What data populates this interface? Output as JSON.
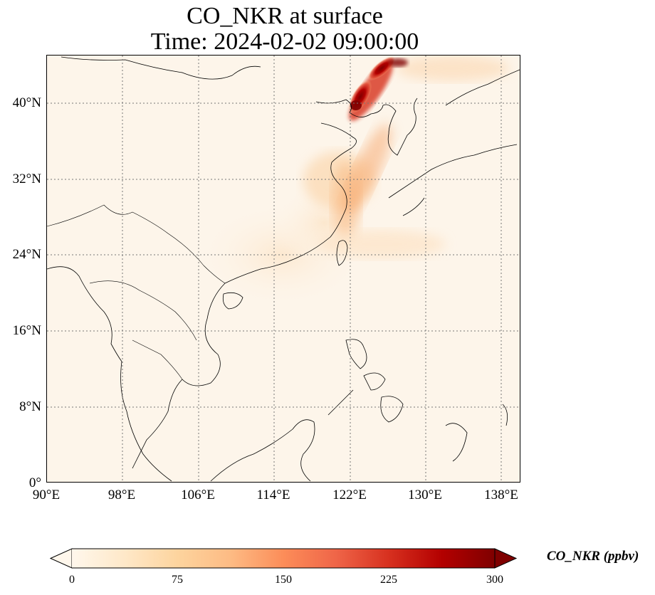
{
  "title": {
    "line1": "CO_NKR at surface",
    "line2": "Time: 2024-02-02 09:00:00"
  },
  "map": {
    "lon_range": [
      90,
      140
    ],
    "lat_range": [
      0,
      45
    ],
    "gridlines": "dotted",
    "colormap": "OrRd",
    "x_tick_labels": [
      "90°E",
      "98°E",
      "106°E",
      "114°E",
      "122°E",
      "130°E",
      "138°E"
    ],
    "y_tick_labels": [
      "0°",
      "8°N",
      "16°N",
      "24°N",
      "32°N",
      "40°N"
    ],
    "plume_color": "#8b0000",
    "background_color": "#fdf5ea"
  },
  "colorbar": {
    "label": "CO_NKR (ppbv)",
    "range": [
      0,
      300
    ],
    "extend": "both",
    "tick_labels": [
      "0",
      "75",
      "150",
      "225",
      "300"
    ],
    "colors": [
      "#fff7ec",
      "#fee8c8",
      "#fdd49e",
      "#fdbb84",
      "#fc8d59",
      "#ef6548",
      "#d7301f",
      "#b30000",
      "#7f0000"
    ]
  }
}
